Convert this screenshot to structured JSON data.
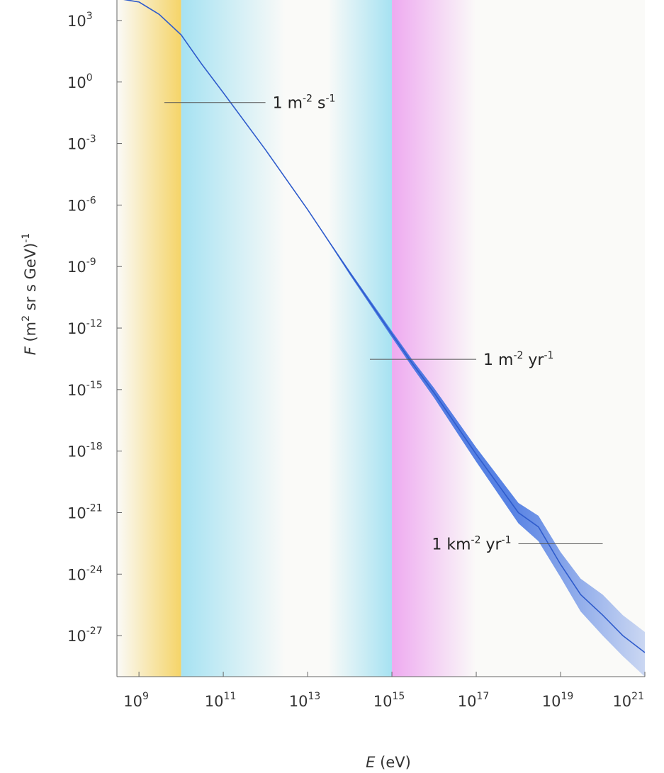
{
  "chart_data": {
    "type": "line",
    "xlabel_var": "E",
    "xlabel_unit": " (eV)",
    "ylabel_var": "F",
    "ylabel_unit_pre": " (m",
    "ylabel_unit_mid": " sr s GeV)",
    "ylabel_sup1": "2",
    "ylabel_sup2": "-1",
    "x_scale": "log",
    "y_scale": "log",
    "xlim": [
      300000000.0,
      1e+21
    ],
    "ylim": [
      1e-29,
      10000.0
    ],
    "x_ticks": [
      {
        "base": "10",
        "exp": "9",
        "value": 1000000000.0
      },
      {
        "base": "10",
        "exp": "11",
        "value": 100000000000.0
      },
      {
        "base": "10",
        "exp": "13",
        "value": 10000000000000.0
      },
      {
        "base": "10",
        "exp": "15",
        "value": 1000000000000000.0
      },
      {
        "base": "10",
        "exp": "17",
        "value": 1e+17
      },
      {
        "base": "10",
        "exp": "19",
        "value": 1e+19
      },
      {
        "base": "10",
        "exp": "21",
        "value": 1e+21
      }
    ],
    "y_ticks": [
      {
        "base": "10",
        "exp": "3",
        "value": 1000.0
      },
      {
        "base": "10",
        "exp": "0",
        "value": 1
      },
      {
        "base": "10",
        "exp": "-3",
        "value": 0.001
      },
      {
        "base": "10",
        "exp": "-6",
        "value": 1e-06
      },
      {
        "base": "10",
        "exp": "-9",
        "value": 1e-09
      },
      {
        "base": "10",
        "exp": "-12",
        "value": 1e-12
      },
      {
        "base": "10",
        "exp": "-15",
        "value": 1e-15
      },
      {
        "base": "10",
        "exp": "-18",
        "value": 1e-18
      },
      {
        "base": "10",
        "exp": "-21",
        "value": 1e-21
      },
      {
        "base": "10",
        "exp": "-24",
        "value": 1e-24
      },
      {
        "base": "10",
        "exp": "-27",
        "value": 1e-27
      }
    ],
    "flux": {
      "x": [
        300000000.0,
        1000000000.0,
        3000000000.0,
        10000000000.0,
        30000000000.0,
        100000000000.0,
        1000000000000.0,
        10000000000000.0,
        100000000000000.0,
        1000000000000000.0,
        3000000000000000.0,
        1e+16,
        1e+17,
        1e+18,
        3e+18,
        1e+19,
        3e+19,
        1e+20,
        3e+20,
        1e+21
      ],
      "y": [
        12000.0,
        8000.0,
        2000.0,
        200.0,
        8,
        0.3,
        0.0005,
        6e-07,
        5e-10,
        5e-13,
        2e-14,
        7e-16,
        7e-19,
        1e-21,
        2e-22,
        3e-24,
        1e-25,
        1e-26,
        1e-27,
        1.5e-28
      ],
      "y_low": [
        12000.0,
        8000.0,
        2000.0,
        200.0,
        8,
        0.3,
        0.0005,
        6e-07,
        4e-10,
        3.5e-13,
        1.3e-14,
        4e-16,
        3e-19,
        3e-22,
        4e-23,
        7e-25,
        1.5e-26,
        1e-27,
        1e-28,
        1e-29
      ],
      "y_high": [
        12000.0,
        8000.0,
        2000.0,
        200.0,
        8,
        0.3,
        0.0005,
        6e-07,
        6e-10,
        7e-13,
        3e-14,
        1.2e-15,
        1.5e-18,
        3e-21,
        7e-22,
        1.2e-23,
        6e-25,
        1e-25,
        1e-26,
        1.5e-27
      ]
    },
    "bands": [
      {
        "from": 300000000.0,
        "to": 10000000000.0,
        "color": "#f5d468",
        "fade": "left"
      },
      {
        "from": 10000000000.0,
        "to": 3000000000000.0,
        "color": "#a6e2f2",
        "fade": "right"
      },
      {
        "from": 30000000000000.0,
        "to": 1000000000000000.0,
        "color": "#a6e2f2",
        "fade": "left"
      },
      {
        "from": 1000000000000000.0,
        "to": 1e+17,
        "color": "#eeaaf0",
        "fade": "right"
      }
    ],
    "annotations": [
      {
        "base": "1 m",
        "sup1": "-2",
        "mid": " s",
        "sup2": "-1",
        "y": 0.1,
        "x_from": 4000000000.0,
        "x_to": 1000000000000.0,
        "label_side": "right"
      },
      {
        "base": "1 m",
        "sup1": "-2",
        "mid": " yr",
        "sup2": "-1",
        "y": 3e-14,
        "x_from": 300000000000000.0,
        "x_to": 1e+17,
        "label_side": "right"
      },
      {
        "base": "1 km",
        "sup1": "-2",
        "mid": " yr",
        "sup2": "-1",
        "y": 3e-23,
        "x_from": 1e+18,
        "x_to": 1e+20,
        "label_side": "left"
      }
    ],
    "colors": {
      "line": "#2f5ccc",
      "band_fill": "#3c6ee0",
      "background": "#fafaf8",
      "axis": "#666666",
      "annotation_line": "#555555"
    }
  }
}
